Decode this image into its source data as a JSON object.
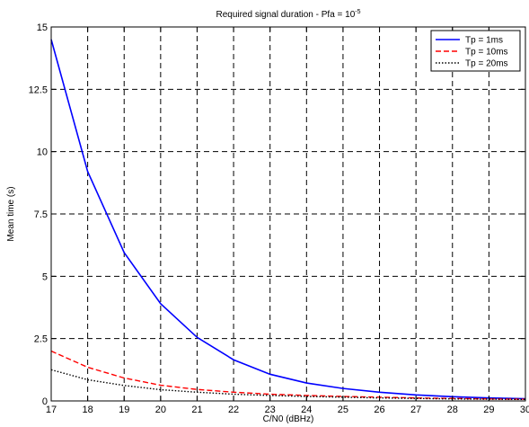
{
  "chart_data": {
    "type": "line",
    "title": "Required signal duration - Pfa = 10",
    "title_superscript": "-5",
    "xlabel": "C/N0 (dBHz)",
    "ylabel": "Mean time (s)",
    "xlim": [
      17,
      30
    ],
    "ylim": [
      0,
      15
    ],
    "xticks": [
      17,
      18,
      19,
      20,
      21,
      22,
      23,
      24,
      25,
      26,
      27,
      28,
      29,
      30
    ],
    "yticks": [
      0,
      2.5,
      5,
      7.5,
      10,
      12.5,
      15
    ],
    "ytick_labels": [
      "0",
      "2.5",
      "5",
      "7.5",
      "10",
      "12.5",
      "15"
    ],
    "grid": true,
    "legend_position": "top-right",
    "x": [
      17,
      18,
      19,
      20,
      21,
      22,
      23,
      24,
      25,
      26,
      27,
      28,
      29,
      30
    ],
    "series": [
      {
        "name": "Tp = 1ms",
        "color": "#0000ff",
        "dash": "solid",
        "values": [
          14.5,
          9.2,
          5.95,
          3.9,
          2.55,
          1.65,
          1.07,
          0.72,
          0.5,
          0.35,
          0.24,
          0.17,
          0.12,
          0.09
        ]
      },
      {
        "name": "Tp = 10ms",
        "color": "#ff0000",
        "dash": "dashed",
        "values": [
          2.0,
          1.35,
          0.92,
          0.63,
          0.46,
          0.35,
          0.27,
          0.22,
          0.18,
          0.15,
          0.12,
          0.1,
          0.08,
          0.07
        ]
      },
      {
        "name": "Tp = 20ms",
        "color": "#000000",
        "dash": "dotted",
        "values": [
          1.25,
          0.85,
          0.62,
          0.45,
          0.35,
          0.27,
          0.22,
          0.18,
          0.15,
          0.12,
          0.1,
          0.08,
          0.07,
          0.06
        ]
      }
    ]
  }
}
